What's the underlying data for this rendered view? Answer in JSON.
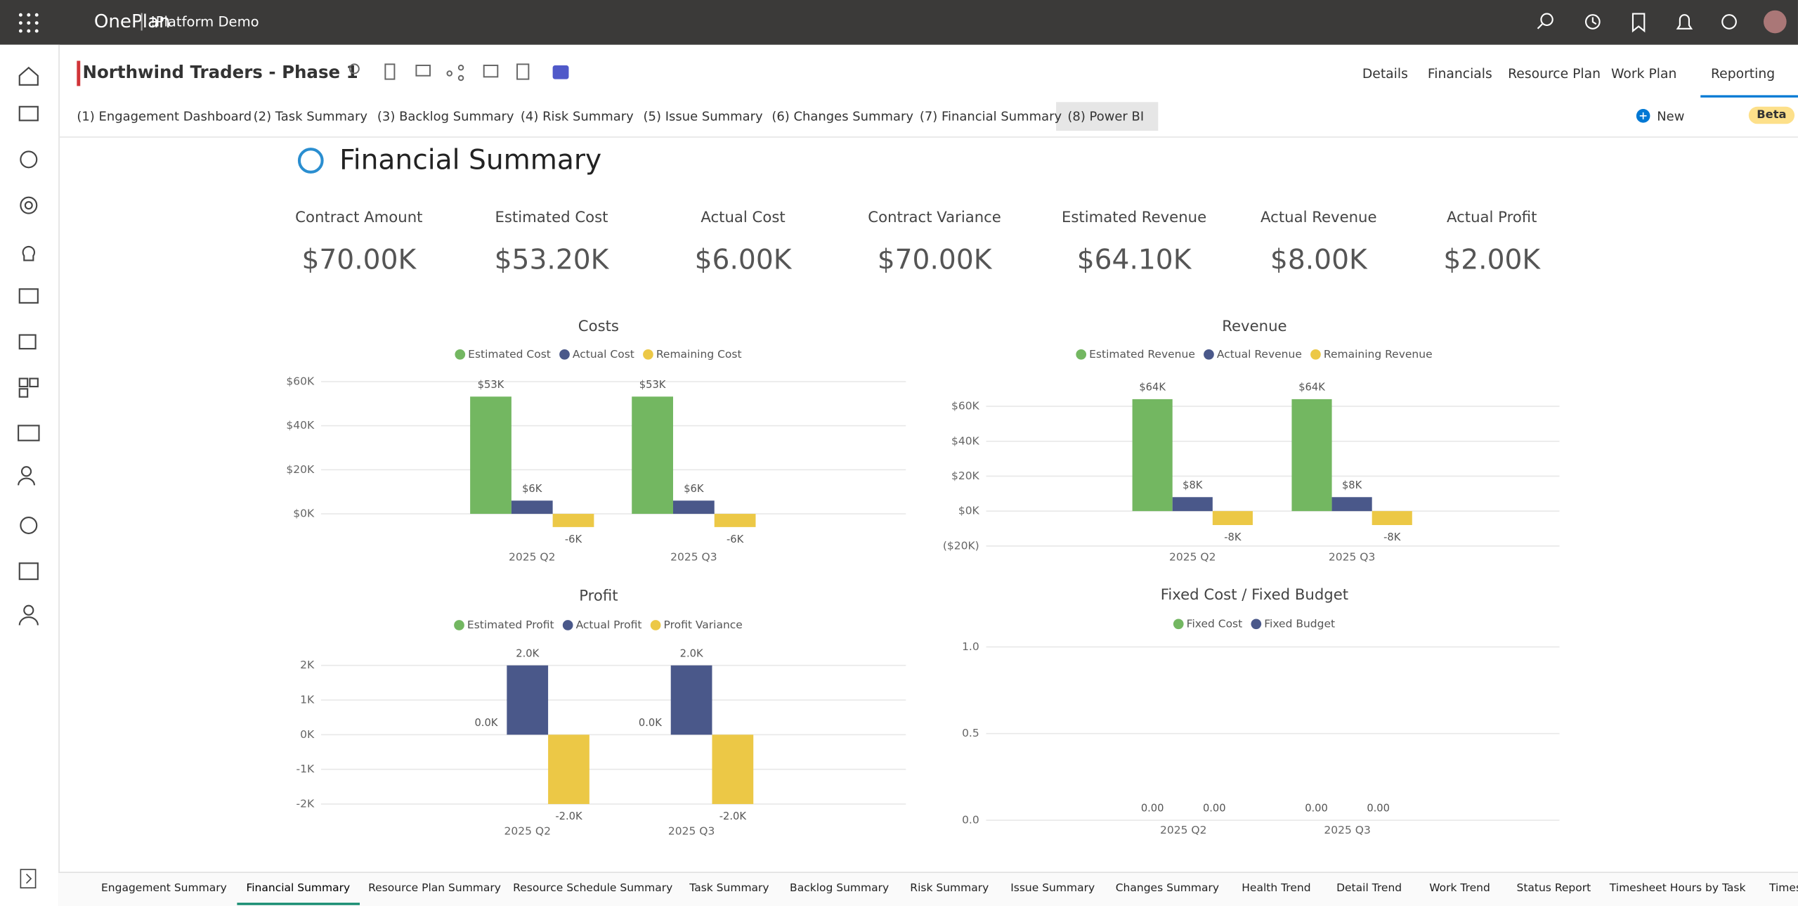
{
  "app": {
    "brand": "OnePlan",
    "workspace": "!Platform Demo"
  },
  "header": {
    "title": "Northwind Traders - Phase 1",
    "nav": [
      "Details",
      "Financials",
      "Resource Plan",
      "Work Plan",
      "Reporting"
    ]
  },
  "report_tabs": {
    "tabs": [
      "(1) Engagement Dashboard",
      "(2) Task Summary",
      "(3) Backlog Summary",
      "(4) Risk Summary",
      "(5) Issue Summary",
      "(6) Changes Summary",
      "(7) Financial Summary",
      "(8) Power BI"
    ],
    "new": "New",
    "beta": "Beta"
  },
  "report": {
    "title": "Financial Summary",
    "kpis": [
      {
        "label": "Contract Amount",
        "value": "$70.00K"
      },
      {
        "label": "Estimated Cost",
        "value": "$53.20K"
      },
      {
        "label": "Actual Cost",
        "value": "$6.00K"
      },
      {
        "label": "Contract Variance",
        "value": "$70.00K"
      },
      {
        "label": "Estimated Revenue",
        "value": "$64.10K"
      },
      {
        "label": "Actual Revenue",
        "value": "$8.00K"
      },
      {
        "label": "Actual Profit",
        "value": "$2.00K"
      }
    ]
  },
  "chart_data": [
    {
      "type": "bar",
      "title": "Costs",
      "categories": [
        "2025 Q2",
        "2025 Q3"
      ],
      "series": [
        {
          "name": "Estimated Cost",
          "color": "#73b761",
          "values": [
            53200,
            53200
          ],
          "value_labels": [
            "$53K",
            "$53K"
          ]
        },
        {
          "name": "Actual Cost",
          "color": "#4a588a",
          "values": [
            6000,
            6000
          ],
          "value_labels": [
            "$6K",
            "$6K"
          ]
        },
        {
          "name": "Remaining Cost",
          "color": "#ecc846",
          "values": [
            -6000,
            -6000
          ],
          "value_labels": [
            "-6K",
            "-6K"
          ]
        }
      ],
      "ylim": [
        -12000,
        64000
      ],
      "yticks": [
        {
          "value": 0,
          "label": "$0K"
        },
        {
          "value": 20000,
          "label": "$20K"
        },
        {
          "value": 40000,
          "label": "$40K"
        },
        {
          "value": 60000,
          "label": "$60K"
        }
      ],
      "grid": true
    },
    {
      "type": "bar",
      "title": "Revenue",
      "categories": [
        "2025 Q2",
        "2025 Q3"
      ],
      "series": [
        {
          "name": "Estimated Revenue",
          "color": "#73b761",
          "values": [
            64100,
            64100
          ],
          "value_labels": [
            "$64K",
            "$64K"
          ]
        },
        {
          "name": "Actual Revenue",
          "color": "#4a588a",
          "values": [
            8000,
            8000
          ],
          "value_labels": [
            "$8K",
            "$8K"
          ]
        },
        {
          "name": "Remaining Revenue",
          "color": "#ecc846",
          "values": [
            -8000,
            -8000
          ],
          "value_labels": [
            "-8K",
            "-8K"
          ]
        }
      ],
      "ylim": [
        -20000,
        70000
      ],
      "yticks": [
        {
          "value": -20000,
          "label": "($20K)"
        },
        {
          "value": 0,
          "label": "$0K"
        },
        {
          "value": 20000,
          "label": "$20K"
        },
        {
          "value": 40000,
          "label": "$40K"
        },
        {
          "value": 60000,
          "label": "$60K"
        }
      ],
      "grid": true
    },
    {
      "type": "bar",
      "title": "Profit",
      "categories": [
        "2025 Q2",
        "2025 Q3"
      ],
      "series": [
        {
          "name": "Estimated Profit",
          "color": "#73b761",
          "values": [
            0,
            0
          ],
          "value_labels": [
            "0.0K",
            "0.0K"
          ]
        },
        {
          "name": "Actual Profit",
          "color": "#4a588a",
          "values": [
            2000,
            2000
          ],
          "value_labels": [
            "2.0K",
            "2.0K"
          ]
        },
        {
          "name": "Profit Variance",
          "color": "#ecc846",
          "values": [
            -2000,
            -2000
          ],
          "value_labels": [
            "-2.0K",
            "-2.0K"
          ]
        }
      ],
      "ylim": [
        -2300,
        2300
      ],
      "yticks": [
        {
          "value": -2000,
          "label": "-2K"
        },
        {
          "value": -1000,
          "label": "-1K"
        },
        {
          "value": 0,
          "label": "0K"
        },
        {
          "value": 1000,
          "label": "1K"
        },
        {
          "value": 2000,
          "label": "2K"
        }
      ],
      "grid": true
    },
    {
      "type": "bar",
      "title": "Fixed Cost / Fixed Budget",
      "categories": [
        "2025 Q2",
        "2025 Q3"
      ],
      "series": [
        {
          "name": "Fixed Cost",
          "color": "#73b761",
          "values": [
            0,
            0
          ],
          "value_labels": [
            "0.00",
            "0.00"
          ]
        },
        {
          "name": "Fixed Budget",
          "color": "#4a588a",
          "values": [
            0,
            0
          ],
          "value_labels": [
            "0.00",
            "0.00"
          ]
        }
      ],
      "ylim": [
        0,
        1
      ],
      "yticks": [
        {
          "value": 0,
          "label": "0.0"
        },
        0.5,
        {
          "value": 1,
          "label": "1.0"
        }
      ],
      "grid": true
    }
  ],
  "bottom_tabs": [
    "Engagement Summary",
    "Financial Summary",
    "Resource Plan Summary",
    "Resource Schedule Summary",
    "Task Summary",
    "Backlog Summary",
    "Risk Summary",
    "Issue Summary",
    "Changes Summary",
    "Health Trend",
    "Detail Trend",
    "Work Trend",
    "Status Report",
    "Timesheet Hours by Task",
    "Times"
  ]
}
